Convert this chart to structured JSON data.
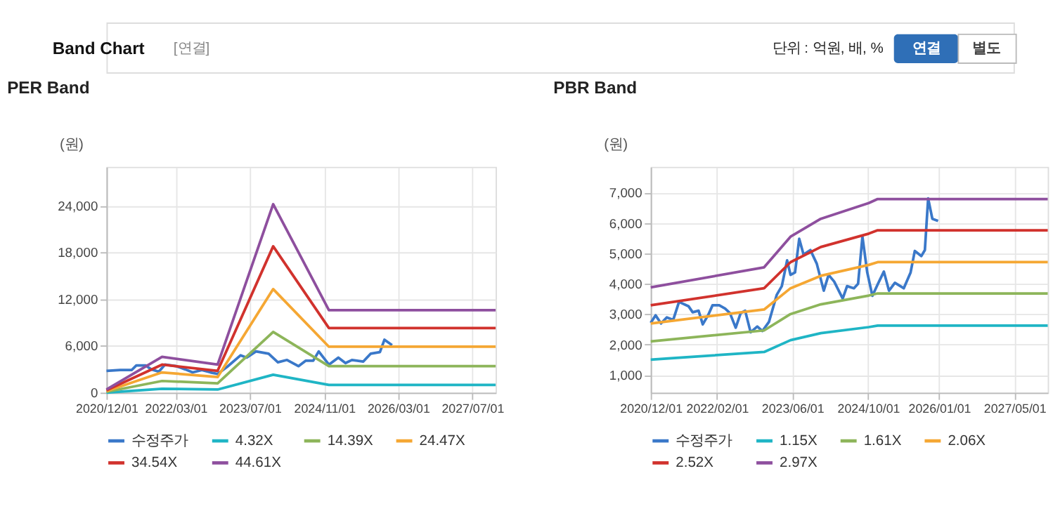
{
  "chart_data": [
    {
      "type": "line",
      "title": "PER Band",
      "ylabel": "(원)",
      "legend": "bottom",
      "grid": true,
      "annotations": [
        "Band Chart",
        "[연결]",
        "단위 : 억원, 배, %",
        "연결",
        "별도"
      ],
      "xlim": [
        "2020-12-01",
        "2027-12-01"
      ],
      "xticks": [
        {
          "value": "2020-12-01",
          "label": "2020/12/01"
        },
        {
          "value": "2022-03-01",
          "label": "2022/03/01"
        },
        {
          "value": "2023-07-01",
          "label": "2023/07/01"
        },
        {
          "value": "2024-11-01",
          "label": "2024/11/01"
        },
        {
          "value": "2026-03-01",
          "label": "2026/03/01"
        },
        {
          "value": "2027-07-01",
          "label": "2027/07/01"
        }
      ],
      "ylim": [
        0,
        29000
      ],
      "yticks": [
        0,
        {
          "value": 6000,
          "label": "6,000"
        },
        {
          "value": 12000,
          "label": "12,000"
        },
        {
          "value": 18000,
          "label": "18,000"
        },
        {
          "value": 24000,
          "label": "24,000"
        }
      ],
      "series": [
        {
          "name": "수정주가",
          "color": "#3a78c9",
          "x": [
            "2020-12-01",
            "2021-03-01",
            "2021-05-15",
            "2021-06-15",
            "2021-08-15",
            "2021-09-20",
            "2021-11-10",
            "2021-12-20",
            "2022-03-05",
            "2022-05-01",
            "2022-06-20",
            "2022-08-20",
            "2022-10-15",
            "2022-12-01",
            "2023-02-01",
            "2023-05-01",
            "2023-06-10",
            "2023-08-10",
            "2023-11-01",
            "2024-01-01",
            "2024-03-01",
            "2024-05-15",
            "2024-07-01",
            "2024-08-20",
            "2024-09-25",
            "2024-12-01",
            "2025-02-01",
            "2025-03-20",
            "2025-05-01",
            "2025-07-15",
            "2025-09-01",
            "2025-11-01",
            "2025-12-01",
            "2026-01-20"
          ],
          "values": [
            2800,
            2900,
            2900,
            3500,
            3500,
            3000,
            2700,
            3600,
            3400,
            3000,
            2600,
            2900,
            2600,
            2400,
            3300,
            4800,
            4500,
            5300,
            5000,
            3900,
            4200,
            3400,
            4100,
            4100,
            5300,
            3600,
            4500,
            3800,
            4200,
            4000,
            5000,
            5200,
            6800,
            6100
          ]
        },
        {
          "name": "4.32X",
          "color": "#1fb5c5",
          "x": [
            "2020-12-01",
            "2021-12-01",
            "2022-12-01",
            "2023-12-01",
            "2024-12-01",
            "2027-12-01"
          ],
          "values": [
            0,
            500,
            400,
            2300,
            1000,
            1000
          ]
        },
        {
          "name": "14.39X",
          "color": "#8db55a",
          "x": [
            "2020-12-01",
            "2021-12-01",
            "2022-12-01",
            "2023-12-01",
            "2024-12-01",
            "2027-12-01"
          ],
          "values": [
            100,
            1500,
            1200,
            7800,
            3400,
            3400
          ]
        },
        {
          "name": "24.47X",
          "color": "#f5a733",
          "x": [
            "2020-12-01",
            "2021-12-01",
            "2022-12-01",
            "2023-12-01",
            "2024-12-01",
            "2027-12-01"
          ],
          "values": [
            200,
            2600,
            2000,
            13300,
            5900,
            5900
          ]
        },
        {
          "name": "34.54X",
          "color": "#d1322d",
          "x": [
            "2020-12-01",
            "2021-12-01",
            "2022-12-01",
            "2023-12-01",
            "2024-12-01",
            "2027-12-01"
          ],
          "values": [
            300,
            3600,
            2800,
            18800,
            8300,
            8300
          ]
        },
        {
          "name": "44.61X",
          "color": "#8e4f9e",
          "x": [
            "2020-12-01",
            "2021-12-01",
            "2022-12-01",
            "2023-12-01",
            "2024-12-01",
            "2027-12-01"
          ],
          "values": [
            400,
            4600,
            3600,
            24200,
            10600,
            10600
          ]
        }
      ]
    },
    {
      "type": "line",
      "title": "PBR Band",
      "ylabel": "(원)",
      "legend": "bottom",
      "grid": true,
      "xlim": [
        "2020-12-01",
        "2027-12-01"
      ],
      "xticks": [
        {
          "value": "2020-12-01",
          "label": "2020/12/01"
        },
        {
          "value": "2022-02-01",
          "label": "2022/02/01"
        },
        {
          "value": "2023-06-01",
          "label": "2023/06/01"
        },
        {
          "value": "2024-10-01",
          "label": "2024/10/01"
        },
        {
          "value": "2026-01-01",
          "label": "2026/01/01"
        },
        {
          "value": "2027-05-01",
          "label": "2027/05/01"
        }
      ],
      "ylim": [
        420,
        7860
      ],
      "yticks": [
        {
          "value": 1000,
          "label": "1,000"
        },
        {
          "value": 2000,
          "label": "2,000"
        },
        {
          "value": 3000,
          "label": "3,000"
        },
        {
          "value": 4000,
          "label": "4,000"
        },
        {
          "value": 5000,
          "label": "5,000"
        },
        {
          "value": 6000,
          "label": "6,000"
        },
        {
          "value": 7000,
          "label": "7,000"
        }
      ],
      "series": [
        {
          "name": "수정주가",
          "color": "#3a78c9",
          "x": [
            "2020-12-01",
            "2021-01-01",
            "2021-02-05",
            "2021-03-15",
            "2021-04-25",
            "2021-06-01",
            "2021-08-01",
            "2021-08-28",
            "2021-10-05",
            "2021-11-01",
            "2021-12-05",
            "2022-01-03",
            "2022-02-15",
            "2022-03-25",
            "2022-04-25",
            "2022-06-01",
            "2022-07-03",
            "2022-08-01",
            "2022-09-05",
            "2022-10-18",
            "2022-11-20",
            "2023-01-01",
            "2023-02-20",
            "2023-03-25",
            "2023-04-28",
            "2023-05-20",
            "2023-06-18",
            "2023-07-15",
            "2023-08-12",
            "2023-09-25",
            "2023-11-05",
            "2023-12-20",
            "2024-01-20",
            "2024-02-25",
            "2024-04-20",
            "2024-05-18",
            "2024-07-01",
            "2024-07-28",
            "2024-08-25",
            "2024-09-25",
            "2024-10-28",
            "2024-12-03",
            "2025-01-10",
            "2025-02-12",
            "2025-03-22",
            "2025-05-18",
            "2025-07-01",
            "2025-07-28",
            "2025-09-08",
            "2025-10-01",
            "2025-10-22",
            "2025-11-18",
            "2025-12-25"
          ],
          "values": [
            2720,
            2970,
            2700,
            2900,
            2820,
            3410,
            3270,
            3070,
            3120,
            2670,
            2970,
            3300,
            3300,
            3190,
            3040,
            2560,
            3040,
            3120,
            2410,
            2600,
            2450,
            2750,
            3640,
            3930,
            4780,
            4300,
            4380,
            5490,
            4970,
            5120,
            4670,
            3780,
            4300,
            4080,
            3520,
            3930,
            3860,
            4010,
            5560,
            4380,
            3610,
            4010,
            4410,
            3780,
            4040,
            3860,
            4380,
            5090,
            4920,
            5120,
            6820,
            6150,
            6080
          ]
        },
        {
          "name": "1.15X",
          "color": "#1fb5c5",
          "x": [
            "2020-12-01",
            "2022-12-01",
            "2023-05-20",
            "2023-12-01",
            "2024-10-05",
            "2024-12-01",
            "2027-12-01"
          ],
          "values": [
            1510,
            1760,
            2150,
            2380,
            2580,
            2630,
            2630
          ]
        },
        {
          "name": "1.61X",
          "color": "#8db55a",
          "x": [
            "2020-12-01",
            "2022-12-01",
            "2023-05-20",
            "2023-12-01",
            "2024-10-05",
            "2024-12-01",
            "2027-12-01"
          ],
          "values": [
            2110,
            2470,
            3010,
            3330,
            3620,
            3690,
            3690
          ]
        },
        {
          "name": "2.06X",
          "color": "#f5a733",
          "x": [
            "2020-12-01",
            "2022-12-01",
            "2023-05-20",
            "2023-12-01",
            "2024-10-05",
            "2024-12-01",
            "2027-12-01"
          ],
          "values": [
            2700,
            3160,
            3860,
            4270,
            4630,
            4720,
            4720
          ]
        },
        {
          "name": "2.52X",
          "color": "#d1322d",
          "x": [
            "2020-12-01",
            "2022-12-01",
            "2023-05-20",
            "2023-12-01",
            "2024-10-05",
            "2024-12-01",
            "2027-12-01"
          ],
          "values": [
            3300,
            3860,
            4720,
            5220,
            5660,
            5770,
            5770
          ]
        },
        {
          "name": "2.97X",
          "color": "#8e4f9e",
          "x": [
            "2020-12-01",
            "2022-12-01",
            "2023-05-20",
            "2023-12-01",
            "2024-10-05",
            "2024-12-01",
            "2027-12-01"
          ],
          "values": [
            3890,
            4550,
            5560,
            6150,
            6670,
            6800,
            6800
          ]
        }
      ]
    }
  ]
}
